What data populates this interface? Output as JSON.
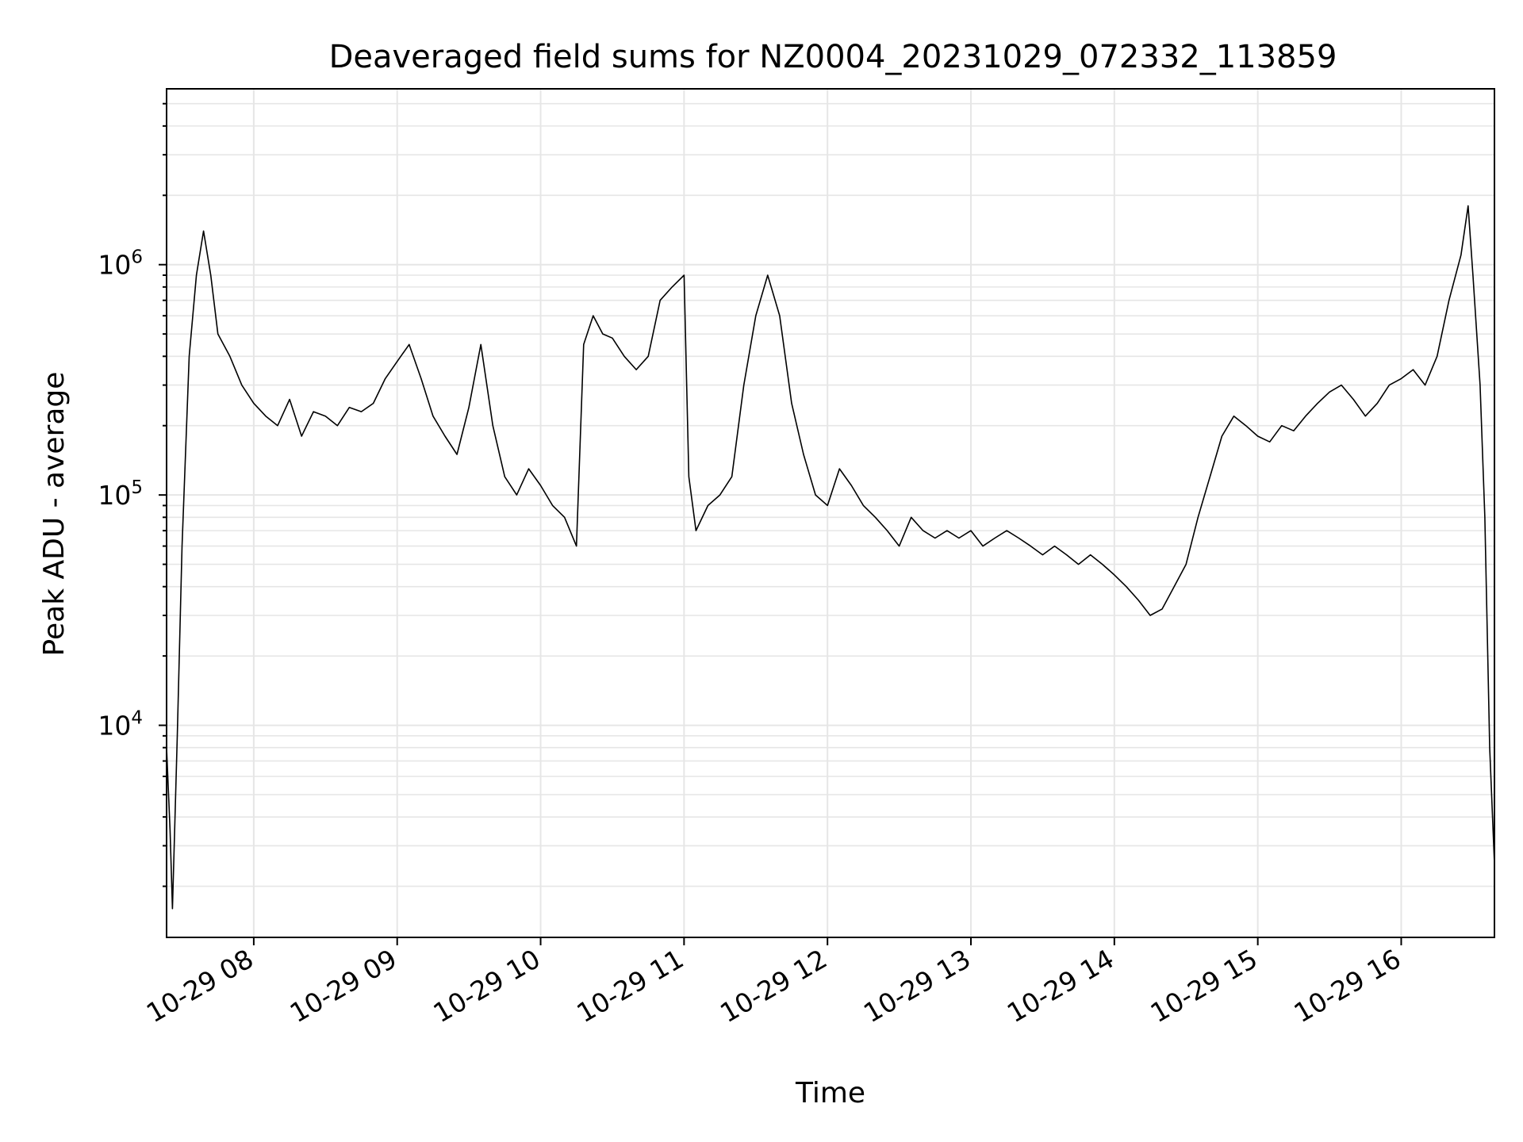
{
  "chart_data": {
    "type": "line",
    "title": "Deaveraged field sums for NZ0004_20231029_072332_113859",
    "xlabel": "Time",
    "ylabel": "Peak ADU - average",
    "yscale": "log",
    "ylim": [
      1200,
      5800000
    ],
    "xlim": [
      "2023-10-29 07:23:32",
      "2023-10-29 16:39:00"
    ],
    "grid": true,
    "line_color": "#000000",
    "grid_color": "#e6e6e6",
    "x_ticks": [
      {
        "t": "2023-10-29 08:00",
        "label": "10-29 08"
      },
      {
        "t": "2023-10-29 09:00",
        "label": "10-29 09"
      },
      {
        "t": "2023-10-29 10:00",
        "label": "10-29 10"
      },
      {
        "t": "2023-10-29 11:00",
        "label": "10-29 11"
      },
      {
        "t": "2023-10-29 12:00",
        "label": "10-29 12"
      },
      {
        "t": "2023-10-29 13:00",
        "label": "10-29 13"
      },
      {
        "t": "2023-10-29 14:00",
        "label": "10-29 14"
      },
      {
        "t": "2023-10-29 15:00",
        "label": "10-29 15"
      },
      {
        "t": "2023-10-29 16:00",
        "label": "10-29 16"
      }
    ],
    "y_ticks": [
      {
        "value": 10000,
        "base": "10",
        "exp": "4"
      },
      {
        "value": 100000,
        "base": "10",
        "exp": "5"
      },
      {
        "value": 1000000,
        "base": "10",
        "exp": "6"
      }
    ],
    "series": [
      {
        "points": [
          [
            "07:23:32",
            8000
          ],
          [
            "07:25",
            3500
          ],
          [
            "07:26",
            1600
          ],
          [
            "07:28",
            9000
          ],
          [
            "07:30",
            60000
          ],
          [
            "07:33",
            400000
          ],
          [
            "07:36",
            900000
          ],
          [
            "07:39",
            1400000
          ],
          [
            "07:42",
            900000
          ],
          [
            "07:45",
            500000
          ],
          [
            "07:50",
            400000
          ],
          [
            "07:55",
            300000
          ],
          [
            "08:00",
            250000
          ],
          [
            "08:05",
            220000
          ],
          [
            "08:10",
            200000
          ],
          [
            "08:15",
            260000
          ],
          [
            "08:20",
            180000
          ],
          [
            "08:25",
            230000
          ],
          [
            "08:30",
            220000
          ],
          [
            "08:35",
            200000
          ],
          [
            "08:40",
            240000
          ],
          [
            "08:45",
            230000
          ],
          [
            "08:50",
            250000
          ],
          [
            "08:55",
            320000
          ],
          [
            "09:00",
            380000
          ],
          [
            "09:05",
            450000
          ],
          [
            "09:10",
            320000
          ],
          [
            "09:15",
            220000
          ],
          [
            "09:20",
            180000
          ],
          [
            "09:25",
            150000
          ],
          [
            "09:30",
            240000
          ],
          [
            "09:35",
            450000
          ],
          [
            "09:40",
            200000
          ],
          [
            "09:45",
            120000
          ],
          [
            "09:50",
            100000
          ],
          [
            "09:55",
            130000
          ],
          [
            "10:00",
            110000
          ],
          [
            "10:05",
            90000
          ],
          [
            "10:10",
            80000
          ],
          [
            "10:15",
            60000
          ],
          [
            "10:18",
            450000
          ],
          [
            "10:22",
            600000
          ],
          [
            "10:26",
            500000
          ],
          [
            "10:30",
            480000
          ],
          [
            "10:35",
            400000
          ],
          [
            "10:40",
            350000
          ],
          [
            "10:45",
            400000
          ],
          [
            "10:50",
            700000
          ],
          [
            "10:55",
            800000
          ],
          [
            "11:00",
            900000
          ],
          [
            "11:02",
            120000
          ],
          [
            "11:05",
            70000
          ],
          [
            "11:10",
            90000
          ],
          [
            "11:15",
            100000
          ],
          [
            "11:20",
            120000
          ],
          [
            "11:25",
            300000
          ],
          [
            "11:30",
            600000
          ],
          [
            "11:35",
            900000
          ],
          [
            "11:40",
            600000
          ],
          [
            "11:45",
            250000
          ],
          [
            "11:50",
            150000
          ],
          [
            "11:55",
            100000
          ],
          [
            "12:00",
            90000
          ],
          [
            "12:05",
            130000
          ],
          [
            "12:10",
            110000
          ],
          [
            "12:15",
            90000
          ],
          [
            "12:20",
            80000
          ],
          [
            "12:25",
            70000
          ],
          [
            "12:30",
            60000
          ],
          [
            "12:35",
            80000
          ],
          [
            "12:40",
            70000
          ],
          [
            "12:45",
            65000
          ],
          [
            "12:50",
            70000
          ],
          [
            "12:55",
            65000
          ],
          [
            "13:00",
            70000
          ],
          [
            "13:05",
            60000
          ],
          [
            "13:10",
            65000
          ],
          [
            "13:15",
            70000
          ],
          [
            "13:20",
            65000
          ],
          [
            "13:25",
            60000
          ],
          [
            "13:30",
            55000
          ],
          [
            "13:35",
            60000
          ],
          [
            "13:40",
            55000
          ],
          [
            "13:45",
            50000
          ],
          [
            "13:50",
            55000
          ],
          [
            "13:55",
            50000
          ],
          [
            "14:00",
            45000
          ],
          [
            "14:05",
            40000
          ],
          [
            "14:10",
            35000
          ],
          [
            "14:15",
            30000
          ],
          [
            "14:20",
            32000
          ],
          [
            "14:25",
            40000
          ],
          [
            "14:30",
            50000
          ],
          [
            "14:35",
            80000
          ],
          [
            "14:40",
            120000
          ],
          [
            "14:45",
            180000
          ],
          [
            "14:50",
            220000
          ],
          [
            "14:55",
            200000
          ],
          [
            "15:00",
            180000
          ],
          [
            "15:05",
            170000
          ],
          [
            "15:10",
            200000
          ],
          [
            "15:15",
            190000
          ],
          [
            "15:20",
            220000
          ],
          [
            "15:25",
            250000
          ],
          [
            "15:30",
            280000
          ],
          [
            "15:35",
            300000
          ],
          [
            "15:40",
            260000
          ],
          [
            "15:45",
            220000
          ],
          [
            "15:50",
            250000
          ],
          [
            "15:55",
            300000
          ],
          [
            "16:00",
            320000
          ],
          [
            "16:05",
            350000
          ],
          [
            "16:10",
            300000
          ],
          [
            "16:15",
            400000
          ],
          [
            "16:20",
            700000
          ],
          [
            "16:25",
            1100000
          ],
          [
            "16:28",
            1800000
          ],
          [
            "16:30",
            900000
          ],
          [
            "16:33",
            300000
          ],
          [
            "16:35",
            80000
          ],
          [
            "16:37",
            8000
          ],
          [
            "16:39",
            2500
          ]
        ]
      }
    ]
  }
}
